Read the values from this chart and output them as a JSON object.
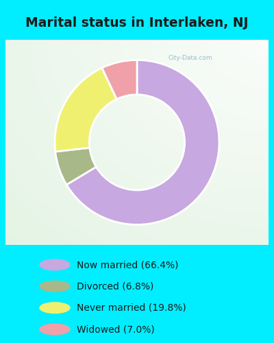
{
  "title": "Marital status in Interlaken, NJ",
  "title_fontsize": 13.5,
  "title_color": "#1a1a1a",
  "bg_cyan": "#00EEFF",
  "bg_chart": "#d8eedf",
  "slices": [
    66.4,
    6.8,
    19.8,
    7.0
  ],
  "colors": [
    "#c8a8e0",
    "#a8b888",
    "#f0f070",
    "#f0a0a8"
  ],
  "labels": [
    "Now married (66.4%)",
    "Divorced (6.8%)",
    "Never married (19.8%)",
    "Widowed (7.0%)"
  ],
  "donut_width": 0.42,
  "start_angle": 90,
  "figsize": [
    4.0,
    5.0
  ],
  "dpi": 100,
  "watermark": "City-Data.com"
}
